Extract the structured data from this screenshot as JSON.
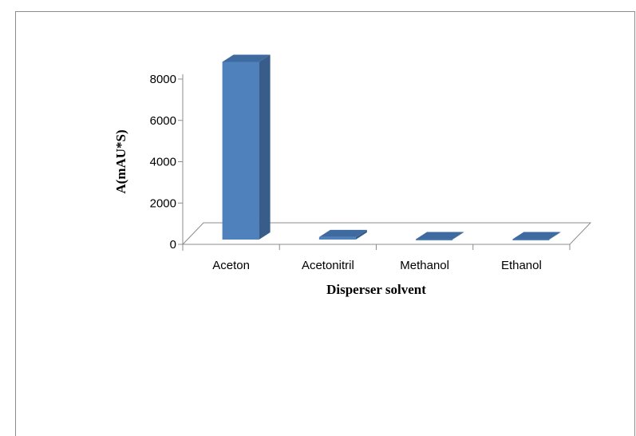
{
  "chart_data": {
    "type": "bar",
    "title": "",
    "xlabel": "Disperser solvent",
    "ylabel": "A(mAU*S)",
    "categories": [
      "Aceton",
      "Acetonitril",
      "Methanol",
      "Ethanol"
    ],
    "values": [
      8600,
      120,
      20,
      20
    ],
    "ylim": [
      0,
      8000
    ],
    "yticks": [
      "0",
      "2000",
      "4000",
      "6000",
      "8000"
    ],
    "grid": false,
    "legend": "none",
    "three_d": true
  },
  "colors": {
    "bar_front": "#4f81bd",
    "bar_side": "#385d8a",
    "bar_top": "#3e6aa0",
    "axis": "#8c8c8c"
  }
}
